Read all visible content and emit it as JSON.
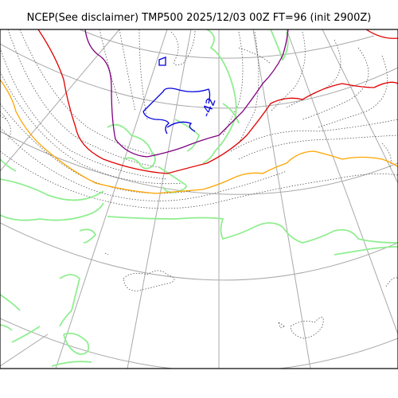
{
  "title": "NCEP(See disclaimer) TMP500 2025/12/03 00Z FT=96 (init 2900Z)",
  "map": {
    "colors": {
      "frame": "#000000",
      "graticule": "#a9a9a9",
      "coastline": "#90ee90",
      "isotherm_dotted": "#555555",
      "contour_red": "#e00000",
      "contour_orange": "#ffa500",
      "contour_purple": "#800080",
      "contour_blue": "#0000dd"
    },
    "contour_label": "-42"
  }
}
